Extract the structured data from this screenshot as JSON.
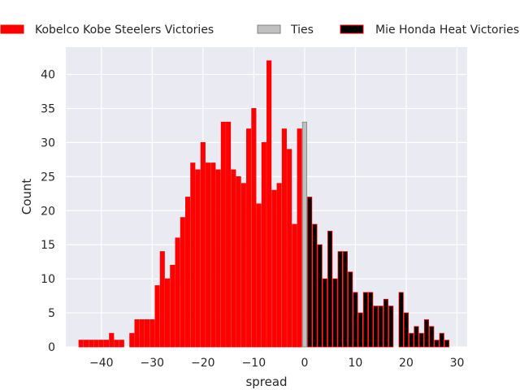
{
  "chart_data": {
    "type": "bar",
    "title": "",
    "xlabel": "spread",
    "ylabel": "Count",
    "xlim": [
      -47,
      32
    ],
    "ylim": [
      0,
      44
    ],
    "x_ticks": [
      -40,
      -30,
      -20,
      -10,
      0,
      10,
      20,
      30
    ],
    "x_tick_labels": [
      "−40",
      "−30",
      "−20",
      "−10",
      "0",
      "10",
      "20",
      "30"
    ],
    "y_ticks": [
      0,
      5,
      10,
      15,
      20,
      25,
      30,
      35,
      40
    ],
    "y_tick_labels": [
      "0",
      "5",
      "10",
      "15",
      "20",
      "25",
      "30",
      "35",
      "40"
    ],
    "grid": true,
    "legend_placement": "top, above plot",
    "series": [
      {
        "name": "Kobelco Kobe Steelers Victories",
        "color": "#ff0000",
        "edge": "#ff0000",
        "x": [
          -44,
          -43,
          -42,
          -41,
          -40,
          -39,
          -38,
          -37,
          -36,
          -34,
          -33,
          -32,
          -31,
          -30,
          -29,
          -28,
          -27,
          -26,
          -25,
          -24,
          -23,
          -22,
          -21,
          -20,
          -19,
          -18,
          -17,
          -16,
          -15,
          -14,
          -13,
          -12,
          -11,
          -10,
          -9,
          -8,
          -7,
          -6,
          -5,
          -4,
          -3,
          -2,
          -1
        ],
        "values": [
          1,
          1,
          1,
          1,
          1,
          1,
          2,
          1,
          1,
          2,
          4,
          4,
          4,
          4,
          9,
          14,
          10,
          12,
          16,
          19,
          22,
          27,
          26,
          30,
          27,
          27,
          26,
          33,
          33,
          26,
          25,
          24,
          32,
          35,
          21,
          30,
          42,
          23,
          24,
          32,
          29,
          18,
          32
        ]
      },
      {
        "name": "Ties",
        "color": "#c0c0c0",
        "edge": "#808080",
        "x": [
          0
        ],
        "values": [
          33
        ]
      },
      {
        "name": "Mie Honda Heat Victories",
        "color": "#000000",
        "edge": "#ff0000",
        "x": [
          1,
          2,
          3,
          4,
          5,
          6,
          7,
          8,
          9,
          10,
          11,
          12,
          13,
          14,
          15,
          16,
          17,
          18,
          19,
          20,
          21,
          22,
          23,
          24,
          25,
          26,
          27,
          28
        ],
        "values": [
          22,
          18,
          15,
          10,
          17,
          10,
          14,
          14,
          11,
          8,
          5,
          8,
          8,
          6,
          6,
          7,
          6,
          0,
          8,
          5,
          2,
          3,
          2,
          4,
          3,
          1,
          2,
          1
        ]
      }
    ]
  }
}
